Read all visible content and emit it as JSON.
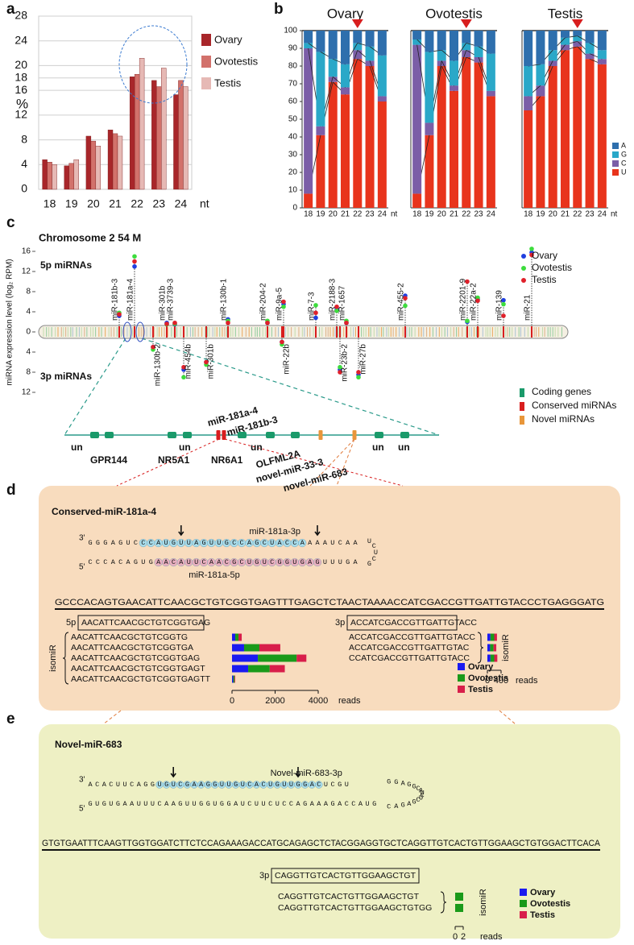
{
  "panel_labels": [
    "a",
    "b",
    "c",
    "d",
    "e"
  ],
  "chart_data": [
    {
      "type": "bar",
      "ylabel": "%",
      "xlabel": "nt",
      "categories": [
        "18",
        "19",
        "20",
        "21",
        "22",
        "23",
        "24"
      ],
      "series": [
        {
          "name": "Ovary",
          "color": "#a8262a",
          "values": [
            4.8,
            3.8,
            8.6,
            9.6,
            18.2,
            17.6,
            15.3
          ]
        },
        {
          "name": "Ovotestis",
          "color": "#d2716b",
          "values": [
            4.4,
            4.2,
            7.8,
            9.0,
            18.6,
            16.6,
            17.6
          ]
        },
        {
          "name": "Testis",
          "color": "#e6b9b5",
          "values": [
            4.0,
            4.8,
            7.0,
            8.6,
            21.2,
            19.6,
            16.6
          ]
        }
      ],
      "ylim": [
        0,
        28
      ],
      "yticks": [
        0,
        4,
        8,
        12,
        16,
        18,
        20,
        24,
        28
      ],
      "grid": true
    },
    {
      "type": "stacked_bar",
      "title": "Ovary",
      "xlabel": "nt",
      "categories": [
        "18",
        "19",
        "20",
        "21",
        "22",
        "23",
        "24"
      ],
      "series": [
        {
          "name": "U",
          "color": "#e8341c",
          "values": [
            8,
            41,
            71,
            64,
            84,
            80,
            60
          ]
        },
        {
          "name": "C",
          "color": "#7b5ea7",
          "values": [
            82,
            5,
            3,
            4,
            5,
            3,
            3
          ]
        },
        {
          "name": "G",
          "color": "#2aa8c8",
          "values": [
            3,
            42,
            10,
            13,
            4,
            8,
            23
          ]
        },
        {
          "name": "A",
          "color": "#2e6fad",
          "values": [
            7,
            12,
            16,
            19,
            7,
            9,
            14
          ]
        }
      ],
      "ylim": [
        0,
        100
      ],
      "yticks": [
        0,
        10,
        20,
        30,
        40,
        50,
        60,
        70,
        80,
        90,
        100
      ]
    },
    {
      "type": "stacked_bar",
      "title": "Ovotestis",
      "categories": [
        "18",
        "19",
        "20",
        "21",
        "22",
        "23",
        "24"
      ],
      "series": [
        {
          "color": "#e8341c",
          "values": [
            8,
            41,
            80,
            66,
            85,
            82,
            63
          ]
        },
        {
          "color": "#7b5ea7",
          "values": [
            84,
            7,
            3,
            3,
            4,
            3,
            3
          ]
        },
        {
          "color": "#2aa8c8",
          "values": [
            3,
            40,
            6,
            14,
            4,
            6,
            21
          ]
        },
        {
          "color": "#2e6fad",
          "values": [
            5,
            12,
            11,
            17,
            7,
            9,
            13
          ]
        }
      ],
      "ylim": [
        0,
        100
      ]
    },
    {
      "type": "stacked_bar",
      "title": "Testis",
      "xlabel": "nt",
      "categories": [
        "18",
        "19",
        "20",
        "21",
        "22",
        "23",
        "24"
      ],
      "series": [
        {
          "color": "#e8341c",
          "values": [
            55,
            63,
            80,
            89,
            91,
            84,
            81
          ]
        },
        {
          "color": "#7b5ea7",
          "values": [
            8,
            6,
            3,
            3,
            3,
            3,
            3
          ]
        },
        {
          "color": "#2aa8c8",
          "values": [
            17,
            12,
            6,
            4,
            3,
            6,
            5
          ]
        },
        {
          "color": "#2e6fad",
          "values": [
            20,
            19,
            11,
            4,
            3,
            7,
            11
          ]
        }
      ],
      "ylim": [
        0,
        100
      ]
    },
    {
      "type": "lollipop",
      "title": "Chromosome 2  54 M",
      "ylabel": "miRNA expression level (log₂ RPM)",
      "arm_labels": [
        "5p miRNAs",
        "3p miRNAs"
      ],
      "categories": [
        "miR-181b-3",
        "miR-181a-4",
        "miR-130b-2",
        "miR-301b",
        "miR-3739-3",
        "miR-454b",
        "miR-301b",
        "miR-130b-1",
        "miR-204-2",
        "miR-22b",
        "miR-9a-5",
        "miR-7-3",
        "miR-2188-3",
        "miR-23b-2",
        "miR-1657",
        "miR-27b",
        "miR-455-2",
        "miR-2201-9",
        "miR-22a-2",
        "miR-139",
        "miR-21"
      ],
      "arms": [
        "5p",
        "5p",
        "3p",
        "5p",
        "5p",
        "3p",
        "3p",
        "5p",
        "5p",
        "3p",
        "5p",
        "5p",
        "5p",
        "3p",
        "5p",
        "3p",
        "5p",
        "5p",
        "5p",
        "5p",
        "5p"
      ],
      "series": [
        {
          "name": "Ovary",
          "color": "#1f3fe0",
          "values": [
            3.2,
            13,
            3,
            1.8,
            1.5,
            7.5,
            6,
            2.5,
            1.8,
            2,
            5.5,
            2.8,
            4.6,
            7.5,
            1.8,
            8.5,
            7.2,
            2,
            6.5,
            6.3,
            15.8
          ]
        },
        {
          "name": "Ovotestis",
          "color": "#3ddc3d",
          "values": [
            3.8,
            15,
            3.5,
            1.5,
            1.6,
            9,
            6.5,
            2.2,
            2.2,
            2.5,
            5,
            5.3,
            4.2,
            7,
            2.2,
            9,
            5.2,
            2.2,
            6.8,
            5.5,
            16.5
          ]
        },
        {
          "name": "Testis",
          "color": "#e0202a",
          "values": [
            3.5,
            14,
            3,
            1.6,
            1.8,
            7,
            6,
            1.8,
            1.8,
            2,
            6,
            3.8,
            5,
            8,
            1.8,
            8,
            6.7,
            10,
            6.2,
            3.2,
            15.3
          ]
        }
      ],
      "ylim": [
        0,
        16
      ],
      "yticks": [
        0,
        4,
        8,
        12,
        16
      ],
      "ylim_3p": [
        0,
        12
      ],
      "yticks_3p": [
        4,
        8,
        12
      ]
    },
    {
      "type": "hbar_stacked",
      "arm_label": "5p",
      "mature": "AACATTCAACGCTGTCGGTGAG",
      "group_label": "isomiR",
      "xlabel": "reads",
      "categories": [
        "AACATTCAACGCTGTCGGTG",
        "AACATTCAACGCTGTCGGTGA",
        "AACATTCAACGCTGTCGGTGAG",
        "AACATTCAACGCTGTCGGTGAGT",
        "AACATTCAACGCTGTCGGTGAGTT"
      ],
      "series": [
        {
          "name": "Ovary",
          "color": "#1a1af0",
          "values": [
            150,
            560,
            1200,
            750,
            60
          ]
        },
        {
          "name": "Ovotestis",
          "color": "#1a9a1a",
          "values": [
            150,
            710,
            1800,
            1000,
            60
          ]
        },
        {
          "name": "Testis",
          "color": "#d81e4a",
          "values": [
            150,
            970,
            450,
            700,
            30
          ]
        }
      ],
      "xlim": [
        0,
        4000
      ],
      "xticks": [
        0,
        2000,
        4000
      ]
    },
    {
      "type": "hbar_stacked",
      "arm_label": "3p",
      "mature": "ACCATCGACCGTTGATTGTACC",
      "group_label": "isomiR",
      "xlabel": "reads",
      "categories": [
        "ACCATCGACCGTTGATTGTACC",
        "ACCATCGACCGTTGATTGTAC",
        "CCATCGACCGTTGATTGTACC"
      ],
      "series": [
        {
          "color": "#1a1af0",
          "values": [
            90,
            80,
            90
          ]
        },
        {
          "color": "#1a9a1a",
          "values": [
            110,
            100,
            110
          ]
        },
        {
          "color": "#d81e4a",
          "values": [
            80,
            80,
            90
          ]
        }
      ],
      "xlim": [
        0,
        400
      ],
      "xticks": [
        0,
        400
      ]
    },
    {
      "type": "hbar_stacked",
      "arm_label": "3p",
      "mature": "CAGGTTGTCACTGTTGGAAGCTGT",
      "group_label": "isomiR",
      "xlabel": "reads",
      "categories": [
        "CAGGTTGTCACTGTTGGAAGCTGT",
        "CAGGTTGTCACTGTTGGAAGCTGTGG"
      ],
      "series": [
        {
          "name": "Ovary",
          "color": "#1a1af0",
          "values": [
            0,
            0
          ]
        },
        {
          "name": "Ovotestis",
          "color": "#1a9a1a",
          "values": [
            2,
            2
          ]
        },
        {
          "name": "Testis",
          "color": "#d81e4a",
          "values": [
            0,
            0
          ]
        }
      ],
      "xlim": [
        0,
        2
      ],
      "xticks": [
        0,
        2
      ]
    }
  ],
  "gene_track": {
    "legend": [
      {
        "label": "Coding genes",
        "color": "#1a9a6a"
      },
      {
        "label": "Conserved miRNAs",
        "color": "#d81e1e"
      },
      {
        "label": "Novel miRNAs",
        "color": "#e8963a"
      }
    ],
    "genes": [
      {
        "label": "un",
        "kind": 0
      },
      {
        "label": "GPR144",
        "kind": 0
      },
      {
        "label": "NR5A1",
        "kind": 0
      },
      {
        "label": "un",
        "kind": 0
      },
      {
        "label": "miR-181a-4",
        "kind": 1
      },
      {
        "label": "miR-181b-3",
        "kind": 1
      },
      {
        "label": "NR6A1",
        "kind": 0
      },
      {
        "label": "un",
        "kind": 0
      },
      {
        "label": "OLFML2A",
        "kind": 0
      },
      {
        "label": "novel-miR-33-3",
        "kind": 2
      },
      {
        "label": "novel-miR-683",
        "kind": 2
      },
      {
        "label": "un",
        "kind": 0
      },
      {
        "label": "un",
        "kind": 0
      }
    ]
  },
  "hairpins": [
    {
      "title": "Conserved-miR-181a-4",
      "three_prime": "3'",
      "five_prime": "5'",
      "top": "GGGAGUCCCAUGUUAGUUGCCAGCUACCAAAAUCAA",
      "loop": "GCUCU",
      "bottom": "CCCACAGUGAACAUUCAACGCUGUCGGUGAGUUUGA",
      "labels": [
        "miR-181a-3p",
        "miR-181a-5p"
      ],
      "precursor": "GCCCACAGTGAACATTCAACGCTGTCGGTGAGTTTGAGCTCTAACTAAAACCATCGACCGTTGATTGTACCCTGAGGGATG"
    },
    {
      "title": "Novel-miR-683",
      "three_prime": "3'",
      "five_prime": "5'",
      "top": "ACACUUCAGGUGUCGAAGGUUGUCACUGUUGGACUCGU",
      "loop": "CAGAGCUCUACGGAGG",
      "bottom": "GUGUGAAUUUCAAGUUGGUGGAUCUUCUCCAGAAAGACCAUG",
      "labels": [
        "Novel-miR-683-3p"
      ],
      "precursor": "GTGTGAATTTCAAGTTGGTGGATCTTCTCCAGAAAGACCATGCAGAGCTCTACGGAGGTGCTCAGGTTGTCACTGTTGGAAGCTGTGGACTTCACA"
    }
  ]
}
